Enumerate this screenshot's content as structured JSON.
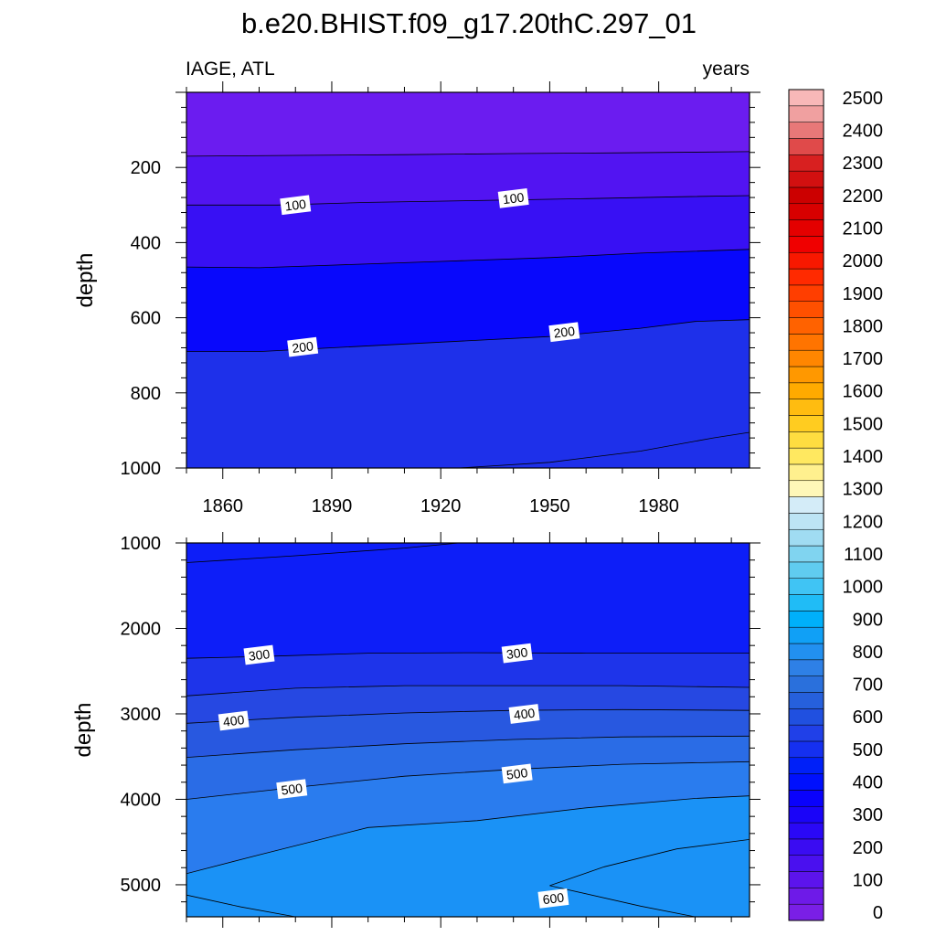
{
  "figure_title": "b.e20.BHIST.f09_g17.20thC.297_01",
  "colorbar": {
    "levels": [
      0,
      50,
      100,
      150,
      200,
      250,
      300,
      350,
      400,
      450,
      500,
      550,
      600,
      650,
      700,
      750,
      800,
      850,
      900,
      950,
      1000,
      1050,
      1100,
      1150,
      1200,
      1250,
      1300,
      1350,
      1400,
      1450,
      1500,
      1550,
      1600,
      1650,
      1700,
      1750,
      1800,
      1850,
      1900,
      1950,
      2000,
      2050,
      2100,
      2150,
      2200,
      2250,
      2300,
      2350,
      2400,
      2450,
      2500,
      2550
    ],
    "colors": [
      "#7a1fe6",
      "#6e1ae8",
      "#5c14ec",
      "#4a10ef",
      "#3a0cf2",
      "#2a08f6",
      "#1a04f8",
      "#0a02fc",
      "#0010fd",
      "#0020f8",
      "#1530f0",
      "#2040e8",
      "#2050e0",
      "#2660dc",
      "#2a70dc",
      "#2e80e6",
      "#2290f0",
      "#10a0f6",
      "#00b0fa",
      "#20bcf6",
      "#40c4f4",
      "#60ccf0",
      "#80d4f0",
      "#a0dcf2",
      "#bde4f4",
      "#d4ecf8",
      "#fff7b8",
      "#fff08e",
      "#ffe860",
      "#ffdd40",
      "#ffcc20",
      "#ffbc10",
      "#ffaa00",
      "#ff9800",
      "#ff8600",
      "#ff7400",
      "#ff6200",
      "#ff5000",
      "#ff3e00",
      "#ff2a00",
      "#f81800",
      "#f00000",
      "#e40000",
      "#d80000",
      "#cc0000",
      "#d21010",
      "#d82020",
      "#e04a4a",
      "#e87878",
      "#f0a0a0",
      "#f8b8b8"
    ],
    "tick_labels": [
      "0",
      "100",
      "200",
      "300",
      "400",
      "500",
      "600",
      "700",
      "800",
      "900",
      "1000",
      "1100",
      "1200",
      "1300",
      "1400",
      "1500",
      "1600",
      "1700",
      "1800",
      "1900",
      "2000",
      "2100",
      "2200",
      "2300",
      "2400",
      "2500"
    ]
  },
  "chart_data": [
    {
      "type": "heatmap",
      "title": "",
      "left_string": "IAGE, ATL",
      "right_string": "years",
      "xlabel": "",
      "ylabel": "depth",
      "xlim": [
        1850,
        2005
      ],
      "ylim": [
        0,
        1000
      ],
      "y_reversed": true,
      "x_ticks": [
        "1860",
        "1890",
        "1920",
        "1950",
        "1980"
      ],
      "y_ticks": [
        "200",
        "400",
        "600",
        "800",
        "1000"
      ],
      "fill_colors_top_to_bottom": [
        "#6b1cf0",
        "#5214f2",
        "#3810f4",
        "#0808fc",
        "#0a18f8",
        "#1e30ea"
      ],
      "contours": [
        {
          "level": 50,
          "x": [
            1850,
            1880,
            1910,
            1940,
            1970,
            2005
          ],
          "y": [
            170,
            168,
            166,
            163,
            161,
            158
          ]
        },
        {
          "level": 100,
          "x": [
            1850,
            1875,
            1900,
            1930,
            1960,
            1985,
            2005
          ],
          "y": [
            300,
            300,
            293,
            288,
            283,
            278,
            275
          ]
        },
        {
          "level": 150,
          "x": [
            1850,
            1870,
            1890,
            1920,
            1950,
            1975,
            2005
          ],
          "y": [
            465,
            467,
            460,
            450,
            440,
            428,
            418
          ]
        },
        {
          "level": 200,
          "x": [
            1850,
            1870,
            1890,
            1920,
            1950,
            1975,
            1990,
            2005
          ],
          "y": [
            690,
            690,
            680,
            665,
            650,
            628,
            610,
            605
          ]
        },
        {
          "level": 250,
          "x": [
            1925,
            1950,
            1975,
            1995,
            2005
          ],
          "y": [
            1000,
            985,
            955,
            920,
            905
          ]
        }
      ],
      "contour_labels": [
        {
          "text": "100",
          "x": 1880,
          "y": 300
        },
        {
          "text": "100",
          "x": 1940,
          "y": 282
        },
        {
          "text": "200",
          "x": 1882,
          "y": 678
        },
        {
          "text": "200",
          "x": 1954,
          "y": 638
        }
      ]
    },
    {
      "type": "heatmap",
      "title": "",
      "xlabel": "",
      "ylabel": "depth",
      "xlim": [
        1850,
        2005
      ],
      "ylim": [
        1000,
        5375
      ],
      "y_reversed": true,
      "x_ticks": [],
      "y_ticks": [
        "1000",
        "2000",
        "3000",
        "4000",
        "5000"
      ],
      "fill_colors_top_to_bottom": [
        "#0d1ef8",
        "#1e34ea",
        "#2648e2",
        "#2858e0",
        "#2a6ce6",
        "#2a7cee",
        "#1a92f6"
      ],
      "contours": [
        {
          "level": 250,
          "x": [
            1850,
            1880,
            1910,
            1925
          ],
          "y": [
            1230,
            1150,
            1060,
            1000
          ]
        },
        {
          "level": 300,
          "x": [
            1850,
            1870,
            1900,
            1930,
            1960,
            1990,
            2005
          ],
          "y": [
            2350,
            2330,
            2290,
            2285,
            2290,
            2290,
            2290
          ]
        },
        {
          "level": 350,
          "x": [
            1850,
            1880,
            1910,
            1940,
            1970,
            2005
          ],
          "y": [
            2790,
            2700,
            2670,
            2670,
            2670,
            2690
          ]
        },
        {
          "level": 400,
          "x": [
            1850,
            1880,
            1910,
            1940,
            1970,
            2005
          ],
          "y": [
            3110,
            3040,
            2990,
            2960,
            2950,
            2960
          ]
        },
        {
          "level": 450,
          "x": [
            1850,
            1880,
            1910,
            1940,
            1970,
            2005
          ],
          "y": [
            3510,
            3420,
            3350,
            3300,
            3270,
            3260
          ]
        },
        {
          "level": 500,
          "x": [
            1850,
            1880,
            1910,
            1940,
            1970,
            2005
          ],
          "y": [
            4000,
            3860,
            3730,
            3650,
            3590,
            3560
          ]
        },
        {
          "level": 550,
          "x": [
            1850,
            1870,
            1900,
            1930,
            1960,
            1990,
            2005
          ],
          "y": [
            4870,
            4650,
            4330,
            4250,
            4100,
            3990,
            3960
          ]
        },
        {
          "level": 600,
          "x": [
            1950,
            1965,
            1985,
            2005
          ],
          "y": [
            5010,
            4790,
            4580,
            4470
          ]
        },
        {
          "level": 600,
          "x": [
            1950,
            1975,
            1990
          ],
          "y": [
            5010,
            5250,
            5375
          ]
        },
        {
          "level": 600,
          "x": [
            1850,
            1865,
            1880
          ],
          "y": [
            5120,
            5260,
            5375
          ]
        }
      ],
      "contour_labels": [
        {
          "text": "300",
          "x": 1870,
          "y": 2310
        },
        {
          "text": "300",
          "x": 1941,
          "y": 2290
        },
        {
          "text": "400",
          "x": 1863,
          "y": 3080
        },
        {
          "text": "400",
          "x": 1943,
          "y": 3000
        },
        {
          "text": "500",
          "x": 1879,
          "y": 3880
        },
        {
          "text": "500",
          "x": 1941,
          "y": 3700
        },
        {
          "text": "600",
          "x": 1951,
          "y": 5160
        }
      ]
    }
  ]
}
